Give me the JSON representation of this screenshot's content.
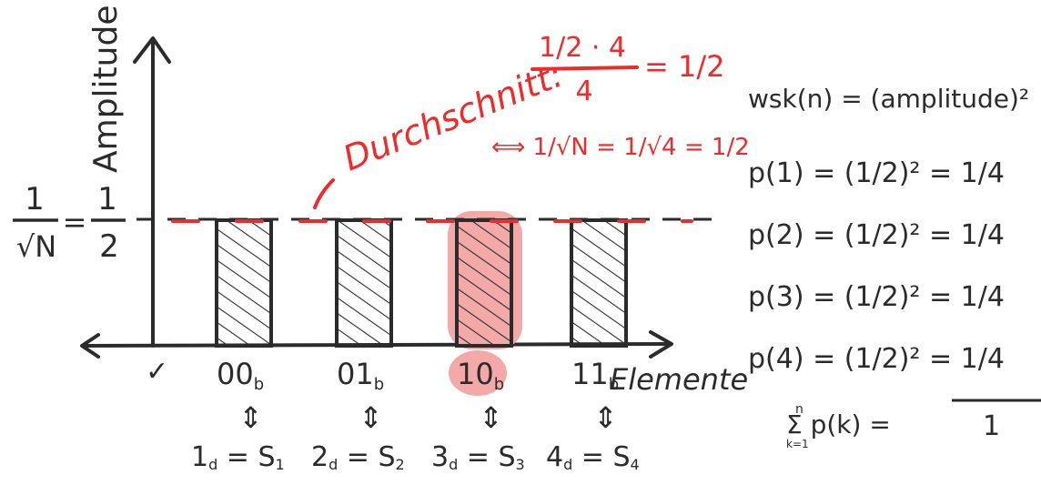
{
  "colors": {
    "ink": "#2b2b2b",
    "accent": "#ee2a2a",
    "highlight": "#f4a9a9"
  },
  "axes": {
    "y_label": "Amplitude",
    "x_label": "Elemente",
    "y_value_left": "1/√N = 1/2",
    "origin_mark": "✓"
  },
  "bars": [
    {
      "binary": "00",
      "binary_sub": "b",
      "decimal": "1",
      "decimal_sub": "d",
      "state": "S",
      "state_sub": "1",
      "amplitude": 0.5,
      "highlighted": false
    },
    {
      "binary": "01",
      "binary_sub": "b",
      "decimal": "2",
      "decimal_sub": "d",
      "state": "S",
      "state_sub": "2",
      "amplitude": 0.5,
      "highlighted": false
    },
    {
      "binary": "10",
      "binary_sub": "b",
      "decimal": "3",
      "decimal_sub": "d",
      "state": "S",
      "state_sub": "3",
      "amplitude": 0.5,
      "highlighted": true
    },
    {
      "binary": "11",
      "binary_sub": "b",
      "decimal": "4",
      "decimal_sub": "d",
      "state": "S",
      "state_sub": "4",
      "amplitude": 0.5,
      "highlighted": false
    }
  ],
  "average": {
    "label": "Durchschnitt:",
    "numerator": "1/2 · 4",
    "denominator": "4",
    "result": "= 1/2",
    "equivalence": "⟺ 1/√N = 1/√4 = 1/2"
  },
  "formulas": {
    "definition": "wsk(n) = (amplitude)²",
    "lines": [
      {
        "lhs": "p(1)",
        "rhs": "= (1/2)² = 1/4"
      },
      {
        "lhs": "p(2)",
        "rhs": "= (1/2)² = 1/4"
      },
      {
        "lhs": "p(3)",
        "rhs": "= (1/2)² = 1/4"
      },
      {
        "lhs": "p(4)",
        "rhs": "= (1/2)² = 1/4"
      }
    ],
    "sum_lhs": "Σ p(k) =",
    "sum_upper": "n",
    "sum_lower": "k=1",
    "sum_rhs": "1"
  }
}
